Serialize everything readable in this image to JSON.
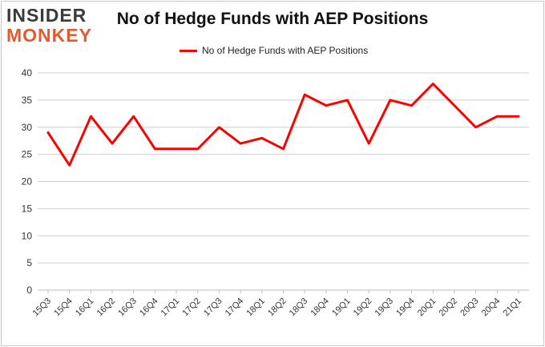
{
  "logo": {
    "line1": "INSIDER",
    "line2": "MONKEY"
  },
  "chart_data": {
    "type": "line",
    "title": "No of Hedge Funds with AEP Positions",
    "xlabel": "",
    "ylabel": "",
    "ylim": [
      0,
      40
    ],
    "yticks": [
      0,
      5,
      10,
      15,
      20,
      25,
      30,
      35,
      40
    ],
    "grid": true,
    "legend_position": "top-center",
    "categories": [
      "15Q3",
      "15Q4",
      "16Q1",
      "16Q2",
      "16Q3",
      "16Q4",
      "17Q1",
      "17Q2",
      "17Q3",
      "17Q4",
      "18Q1",
      "18Q2",
      "18Q3",
      "18Q4",
      "19Q1",
      "19Q2",
      "19Q3",
      "19Q4",
      "20Q1",
      "20Q2",
      "20Q3",
      "20Q4",
      "21Q1"
    ],
    "series": [
      {
        "name": "No of Hedge Funds with AEP Positions",
        "color": "#ff0000",
        "values": [
          29,
          23,
          32,
          27,
          32,
          26,
          26,
          26,
          30,
          27,
          28,
          26,
          36,
          34,
          35,
          27,
          35,
          34,
          38,
          34,
          30,
          32,
          32
        ]
      }
    ]
  }
}
